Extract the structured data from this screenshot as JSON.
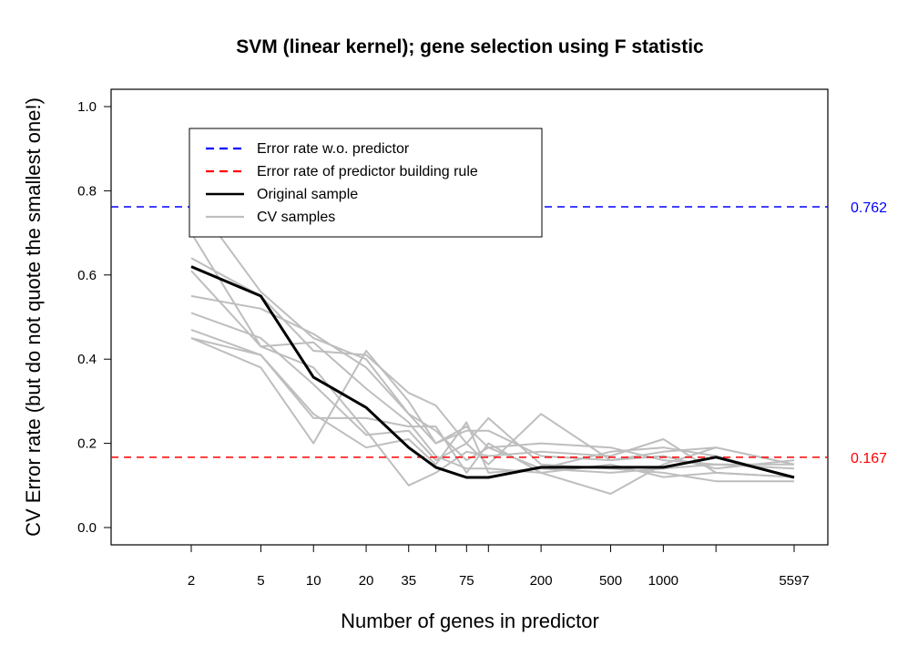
{
  "chart_data": {
    "type": "line",
    "title": "SVM (linear kernel); gene selection using F statistic",
    "xlabel": "Number of genes in predictor",
    "ylabel": "CV Error rate (but do not quote the smallest one!)",
    "x_scale": "log",
    "x_positions": [
      2,
      5,
      10,
      20,
      35,
      50,
      75,
      100,
      200,
      500,
      1000,
      2000,
      5597
    ],
    "x_tick_labels": [
      "2",
      "5",
      "10",
      "20",
      "35",
      "",
      "75",
      "",
      "200",
      "500",
      "1000",
      "",
      "5597"
    ],
    "y_ticks": [
      "0.0",
      "0.2",
      "0.4",
      "0.6",
      "0.8",
      "1.0"
    ],
    "y_tick_values": [
      0.0,
      0.2,
      0.4,
      0.6,
      0.8,
      1.0
    ],
    "ylim": [
      0,
      1
    ],
    "reference_lines": [
      {
        "name": "Error rate w.o. predictor",
        "value": 0.762,
        "label": "0.762",
        "color": "#0000ff",
        "style": "dashed"
      },
      {
        "name": "Error rate of predictor building rule",
        "value": 0.167,
        "label": "0.167",
        "color": "#ff0000",
        "style": "dashed"
      }
    ],
    "original_sample": {
      "name": "Original sample",
      "color": "#000000",
      "values": [
        0.62,
        0.55,
        0.357,
        0.285,
        0.19,
        0.143,
        0.119,
        0.119,
        0.143,
        0.143,
        0.143,
        0.167,
        0.119
      ]
    },
    "cv_samples": {
      "name": "CV samples",
      "color": "#bebebe",
      "series": [
        [
          0.785,
          0.56,
          0.45,
          0.4,
          0.27,
          0.2,
          0.24,
          0.19,
          0.14,
          0.13,
          0.14,
          0.15,
          0.14
        ],
        [
          0.7,
          0.43,
          0.44,
          0.33,
          0.25,
          0.17,
          0.14,
          0.14,
          0.13,
          0.08,
          0.15,
          0.19,
          0.15
        ],
        [
          0.64,
          0.55,
          0.42,
          0.41,
          0.32,
          0.29,
          0.2,
          0.26,
          0.15,
          0.14,
          0.13,
          0.11,
          0.11
        ],
        [
          0.61,
          0.43,
          0.38,
          0.23,
          0.1,
          0.13,
          0.18,
          0.17,
          0.18,
          0.17,
          0.21,
          0.13,
          0.12
        ],
        [
          0.55,
          0.52,
          0.46,
          0.38,
          0.27,
          0.23,
          0.16,
          0.19,
          0.2,
          0.19,
          0.16,
          0.15,
          0.15
        ],
        [
          0.51,
          0.45,
          0.34,
          0.22,
          0.23,
          0.16,
          0.2,
          0.15,
          0.27,
          0.16,
          0.17,
          0.14,
          0.16
        ],
        [
          0.47,
          0.41,
          0.27,
          0.19,
          0.21,
          0.15,
          0.25,
          0.13,
          0.14,
          0.18,
          0.19,
          0.17,
          0.12
        ],
        [
          0.45,
          0.41,
          0.26,
          0.26,
          0.24,
          0.24,
          0.13,
          0.2,
          0.13,
          0.15,
          0.12,
          0.13,
          0.12
        ],
        [
          0.45,
          0.38,
          0.2,
          0.42,
          0.3,
          0.2,
          0.23,
          0.23,
          0.17,
          0.16,
          0.18,
          0.19,
          0.15
        ]
      ]
    },
    "legend": {
      "position": "top-left",
      "items": [
        {
          "label": "Error rate w.o. predictor",
          "color": "#0000ff",
          "style": "dashed"
        },
        {
          "label": "Error rate of predictor building rule",
          "color": "#ff0000",
          "style": "dashed"
        },
        {
          "label": "Original sample",
          "color": "#000000",
          "style": "solid"
        },
        {
          "label": "CV samples",
          "color": "#bebebe",
          "style": "solid"
        }
      ]
    }
  }
}
